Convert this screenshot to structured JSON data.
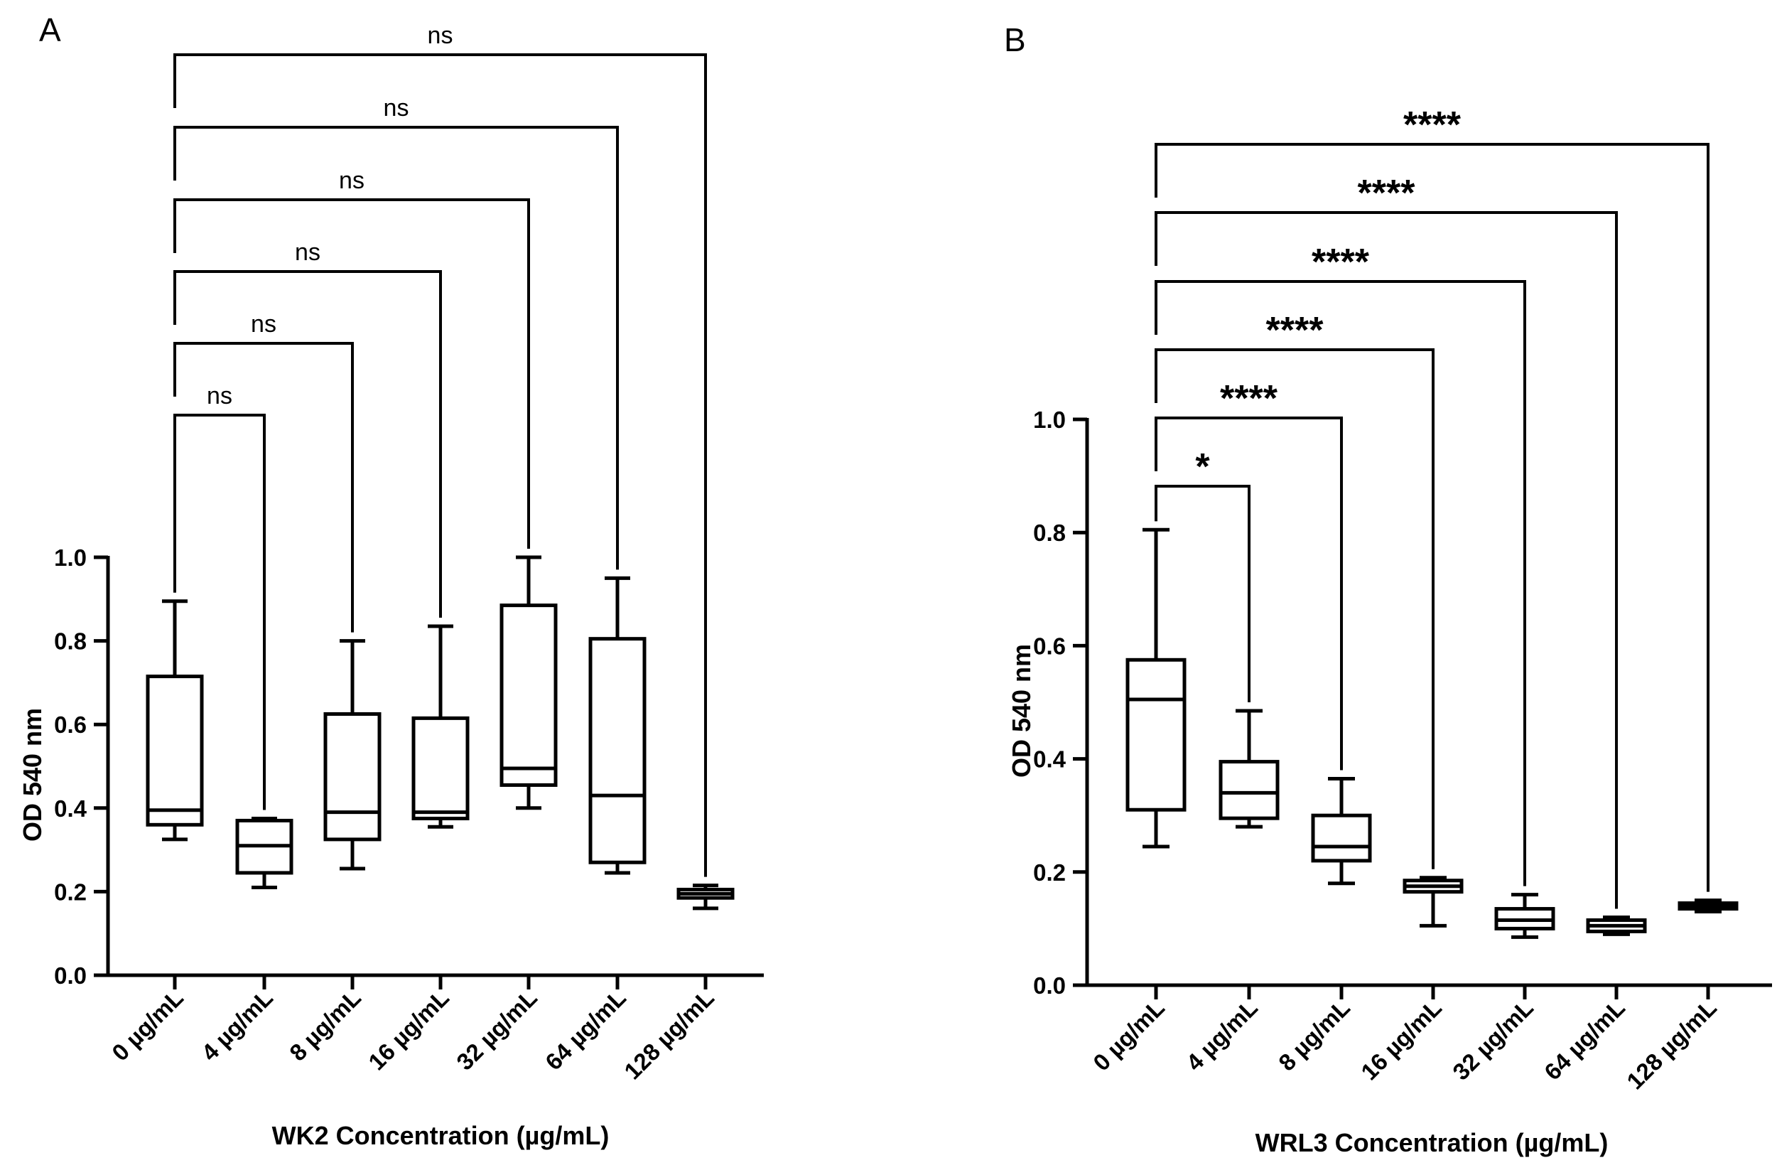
{
  "chart_data": [
    {
      "type": "box",
      "panel": "A",
      "xlabel": "WK2 Concentration (µg/mL)",
      "ylabel": "OD 540 nm",
      "ylim": [
        0,
        1.0
      ],
      "yticks": [
        "0.0",
        "0.2",
        "0.4",
        "0.6",
        "0.8",
        "1.0"
      ],
      "categories": [
        "0 µg/mL",
        "4  µg/mL",
        "8  µg/mL",
        "16  µg/mL",
        "32  µg/mL",
        "64  µg/mL",
        "128  µg/mL"
      ],
      "boxes": [
        {
          "min": 0.325,
          "q1": 0.36,
          "median": 0.395,
          "q3": 0.715,
          "max": 0.895
        },
        {
          "min": 0.21,
          "q1": 0.245,
          "median": 0.31,
          "q3": 0.37,
          "max": 0.375
        },
        {
          "min": 0.255,
          "q1": 0.325,
          "median": 0.39,
          "q3": 0.625,
          "max": 0.8
        },
        {
          "min": 0.355,
          "q1": 0.375,
          "median": 0.39,
          "q3": 0.615,
          "max": 0.835
        },
        {
          "min": 0.4,
          "q1": 0.455,
          "median": 0.495,
          "q3": 0.885,
          "max": 1.0
        },
        {
          "min": 0.245,
          "q1": 0.27,
          "median": 0.43,
          "q3": 0.805,
          "max": 0.95
        },
        {
          "min": 0.16,
          "q1": 0.185,
          "median": 0.195,
          "q3": 0.205,
          "max": 0.215
        }
      ],
      "comparisons": [
        "ns",
        "ns",
        "ns",
        "ns",
        "ns",
        "ns"
      ]
    },
    {
      "type": "box",
      "panel": "B",
      "xlabel": "WRL3 Concentration (µg/mL)",
      "ylabel": "OD 540 nm",
      "ylim": [
        0,
        1.0
      ],
      "yticks": [
        "0.0",
        "0.2",
        "0.4",
        "0.6",
        "0.8",
        "1.0"
      ],
      "categories": [
        "0 µg/mL",
        "4 µg/mL",
        "8 µg/mL",
        "16 µg/mL",
        "32 µg/mL",
        "64 µg/mL",
        "128 µg/mL"
      ],
      "boxes": [
        {
          "min": 0.245,
          "q1": 0.31,
          "median": 0.505,
          "q3": 0.575,
          "max": 0.805
        },
        {
          "min": 0.28,
          "q1": 0.295,
          "median": 0.34,
          "q3": 0.395,
          "max": 0.485
        },
        {
          "min": 0.18,
          "q1": 0.22,
          "median": 0.245,
          "q3": 0.3,
          "max": 0.365
        },
        {
          "min": 0.105,
          "q1": 0.165,
          "median": 0.175,
          "q3": 0.185,
          "max": 0.19
        },
        {
          "min": 0.085,
          "q1": 0.1,
          "median": 0.115,
          "q3": 0.135,
          "max": 0.16
        },
        {
          "min": 0.09,
          "q1": 0.095,
          "median": 0.105,
          "q3": 0.115,
          "max": 0.12
        },
        {
          "min": 0.13,
          "q1": 0.135,
          "median": 0.14,
          "q3": 0.145,
          "max": 0.15
        }
      ],
      "comparisons": [
        "*",
        "****",
        "****",
        "****",
        "****",
        "****"
      ]
    }
  ]
}
